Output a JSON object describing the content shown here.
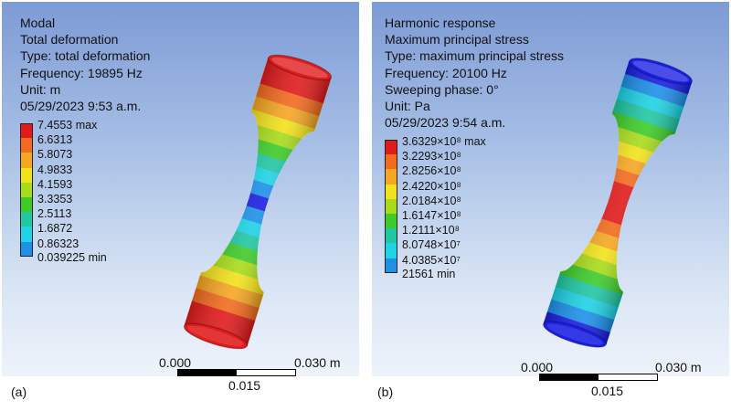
{
  "panels": [
    {
      "id": "a",
      "tag": "(a)",
      "info": [
        "Modal",
        "Total deformation",
        "Type: total deformation",
        "Frequency: 19895 Hz",
        "Unit: m",
        "05/29/2023 9:53 a.m."
      ],
      "legend": {
        "labels": [
          "7.4553 max",
          "6.6313",
          "5.8073",
          "4.9833",
          "4.1593",
          "3.3353",
          "2.5113",
          "1.6872",
          "0.86323",
          "0.039225 min"
        ],
        "colors": [
          "#e01b1b",
          "#f26b1f",
          "#f5a623",
          "#f2e21b",
          "#a8db1a",
          "#3ecb2a",
          "#21c7a3",
          "#1fd2e6",
          "#1e90e8",
          "#1a1ee0"
        ]
      },
      "specimen_bands": [
        "#e01b1b",
        "#e01b1b",
        "#f26b1f",
        "#f5a623",
        "#f2e21b",
        "#a8db1a",
        "#3ecb2a",
        "#21c7a3",
        "#1fd2e6",
        "#1e90e8",
        "#1a1ee0",
        "#1e90e8",
        "#1fd2e6",
        "#21c7a3",
        "#3ecb2a",
        "#a8db1a",
        "#f2e21b",
        "#f5a623",
        "#f26b1f",
        "#e01b1b",
        "#e01b1b"
      ],
      "end_color": "#e01b1b",
      "scale": {
        "left": "0.000",
        "right": "0.030 m",
        "mid": "0.015"
      }
    },
    {
      "id": "b",
      "tag": "(b)",
      "info": [
        "Harmonic response",
        "Maximum principal stress",
        "Type: maximum principal stress",
        "Frequency: 20100 Hz",
        "Sweeping phase: 0°",
        "Unit: Pa",
        "05/29/2023 9:54 a.m."
      ],
      "legend": {
        "labels": [
          "3.6329×10⁸ max",
          "3.2293×10⁸",
          "2.8256×10⁸",
          "2.4220×10⁸",
          "2.0184×10⁸",
          "1.6147×10⁸",
          "1.2111×10⁸",
          "8.0748×10⁷",
          "4.0385×10⁷",
          "21561 min"
        ],
        "colors": [
          "#e01b1b",
          "#f26b1f",
          "#f5a623",
          "#f2e21b",
          "#a8db1a",
          "#3ecb2a",
          "#21c7a3",
          "#1fd2e6",
          "#1e90e8",
          "#1a1ee0"
        ]
      },
      "specimen_bands": [
        "#1a1ee0",
        "#1e90e8",
        "#1fd2e6",
        "#21c7a3",
        "#3ecb2a",
        "#a8db1a",
        "#f2e21b",
        "#f5a623",
        "#f26b1f",
        "#e01b1b",
        "#e01b1b",
        "#e01b1b",
        "#f26b1f",
        "#f5a623",
        "#f2e21b",
        "#a8db1a",
        "#3ecb2a",
        "#21c7a3",
        "#1fd2e6",
        "#1e90e8",
        "#1a1ee0"
      ],
      "end_color": "#1a1ee0",
      "scale": {
        "left": "0.000",
        "right": "0.030 m",
        "mid": "0.015"
      }
    }
  ]
}
